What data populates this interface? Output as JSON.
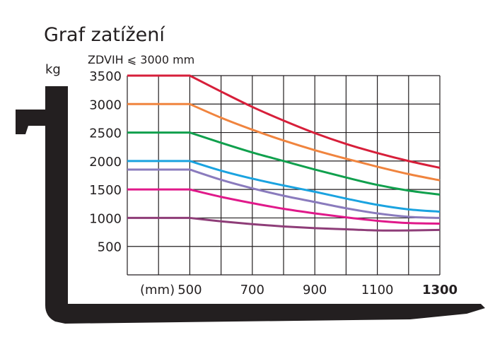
{
  "chart_data": {
    "type": "line",
    "title": "Graf zatížení",
    "subtitle": "ZDVIH ⩽ 3000 mm",
    "ylabel": "kg",
    "xlabel": "(mm)",
    "xlim": [
      300,
      1300
    ],
    "ylim": [
      0,
      3500
    ],
    "x_ticks": [
      500,
      700,
      900,
      1100,
      1300
    ],
    "y_ticks": [
      500,
      1000,
      1500,
      2000,
      2500,
      3000,
      3500
    ],
    "grid": true,
    "series": [
      {
        "color": "#d71f3a",
        "points": [
          [
            300,
            3500
          ],
          [
            500,
            3500
          ],
          [
            600,
            3220
          ],
          [
            700,
            2950
          ],
          [
            800,
            2710
          ],
          [
            900,
            2490
          ],
          [
            1000,
            2300
          ],
          [
            1100,
            2140
          ],
          [
            1200,
            2000
          ],
          [
            1300,
            1880
          ]
        ]
      },
      {
        "color": "#f0843e",
        "points": [
          [
            300,
            3000
          ],
          [
            500,
            3000
          ],
          [
            600,
            2760
          ],
          [
            700,
            2550
          ],
          [
            800,
            2360
          ],
          [
            900,
            2190
          ],
          [
            1000,
            2040
          ],
          [
            1100,
            1900
          ],
          [
            1200,
            1770
          ],
          [
            1300,
            1660
          ]
        ]
      },
      {
        "color": "#10a04d",
        "points": [
          [
            300,
            2500
          ],
          [
            500,
            2500
          ],
          [
            600,
            2320
          ],
          [
            700,
            2150
          ],
          [
            800,
            2000
          ],
          [
            900,
            1850
          ],
          [
            1000,
            1710
          ],
          [
            1100,
            1580
          ],
          [
            1200,
            1480
          ],
          [
            1300,
            1410
          ]
        ]
      },
      {
        "color": "#1aa3e0",
        "points": [
          [
            300,
            2000
          ],
          [
            500,
            2000
          ],
          [
            600,
            1830
          ],
          [
            700,
            1690
          ],
          [
            800,
            1570
          ],
          [
            900,
            1460
          ],
          [
            1000,
            1340
          ],
          [
            1100,
            1230
          ],
          [
            1200,
            1150
          ],
          [
            1300,
            1110
          ]
        ]
      },
      {
        "color": "#8a7bbd",
        "points": [
          [
            300,
            1850
          ],
          [
            500,
            1850
          ],
          [
            600,
            1670
          ],
          [
            700,
            1520
          ],
          [
            800,
            1390
          ],
          [
            900,
            1280
          ],
          [
            1000,
            1170
          ],
          [
            1100,
            1080
          ],
          [
            1200,
            1020
          ],
          [
            1300,
            1000
          ]
        ]
      },
      {
        "color": "#e0198a",
        "points": [
          [
            300,
            1500
          ],
          [
            500,
            1500
          ],
          [
            600,
            1370
          ],
          [
            700,
            1260
          ],
          [
            800,
            1160
          ],
          [
            900,
            1080
          ],
          [
            1000,
            1010
          ],
          [
            1100,
            950
          ],
          [
            1200,
            910
          ],
          [
            1300,
            900
          ]
        ]
      },
      {
        "color": "#8e3d78",
        "points": [
          [
            300,
            1000
          ],
          [
            500,
            1000
          ],
          [
            600,
            940
          ],
          [
            700,
            890
          ],
          [
            800,
            850
          ],
          [
            900,
            820
          ],
          [
            1000,
            800
          ],
          [
            1100,
            780
          ],
          [
            1200,
            780
          ],
          [
            1300,
            790
          ]
        ]
      }
    ]
  }
}
